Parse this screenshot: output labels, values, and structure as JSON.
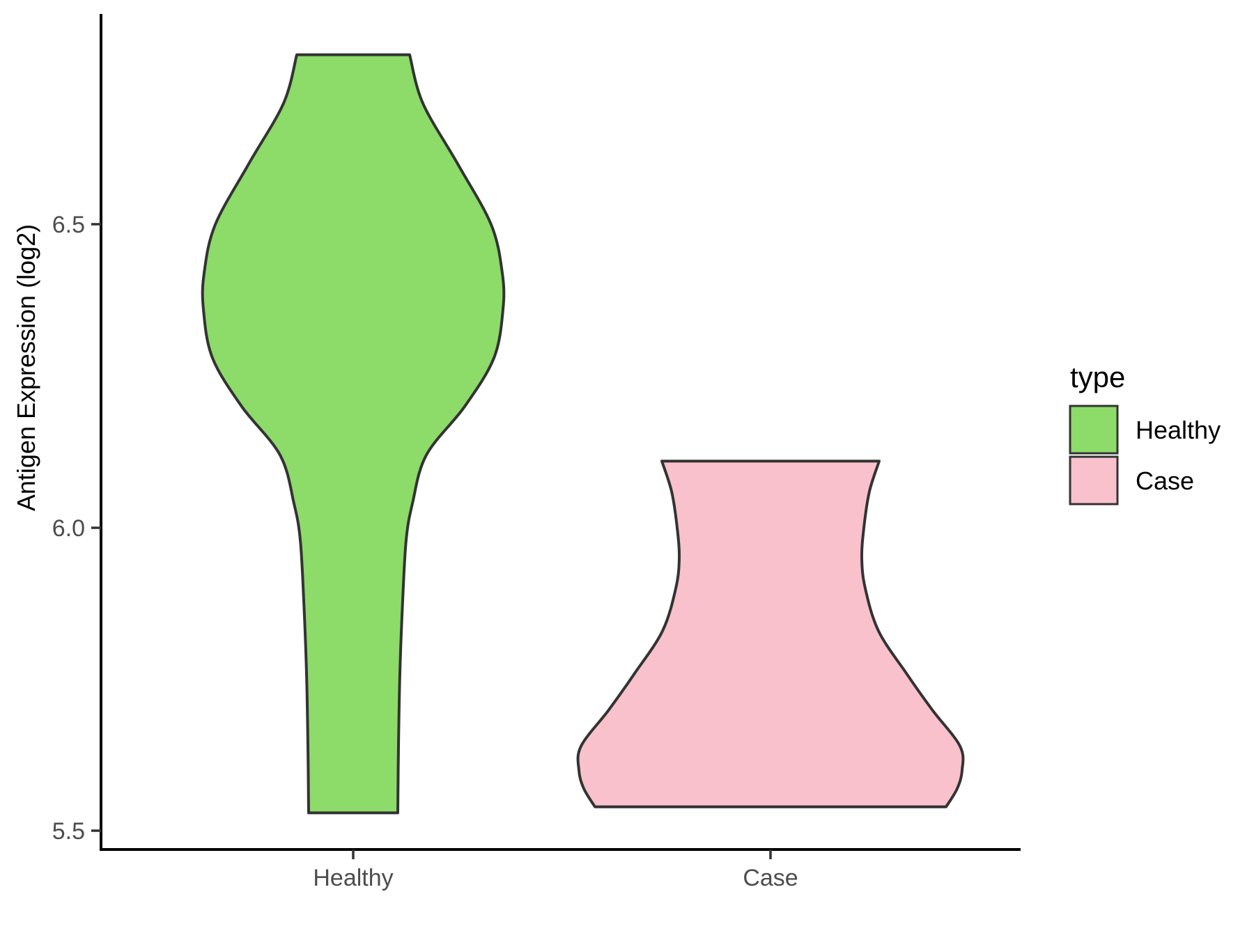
{
  "figure": {
    "background": "#ffffff",
    "axis_line_color": "#000000",
    "tick_mark_color": "#333333",
    "tick_label_color": "#4d4d4d",
    "violin_outline_color": "#333333"
  },
  "chart_data": {
    "type": "violin",
    "title": "",
    "xlabel": "",
    "ylabel": "Antigen Expression (log2)",
    "categories": [
      "Healthy",
      "Case"
    ],
    "y_ticks": [
      "5.5",
      "6.0",
      "6.5"
    ],
    "y_tick_values": [
      5.5,
      6.0,
      6.5
    ],
    "ylim": [
      5.47,
      6.85
    ],
    "grid": false,
    "theme": "classic (no gridlines, black axis lines)",
    "legend": {
      "title": "type",
      "position": "right",
      "entries": [
        {
          "label": "Healthy",
          "color": "#8ddb69"
        },
        {
          "label": "Case",
          "color": "#f8c1cc"
        }
      ]
    },
    "series": [
      {
        "name": "Healthy",
        "color": "#8ddb69",
        "y_min": 5.53,
        "y_max": 6.78,
        "widest_at_y": 6.38,
        "profile_units": "[y_value, half_width_px_at_1800px_figure]",
        "profile": [
          [
            6.78,
            81
          ],
          [
            6.7,
            100
          ],
          [
            6.6,
            150
          ],
          [
            6.5,
            198
          ],
          [
            6.42,
            214
          ],
          [
            6.36,
            215
          ],
          [
            6.28,
            202
          ],
          [
            6.2,
            160
          ],
          [
            6.12,
            105
          ],
          [
            6.04,
            85
          ],
          [
            5.98,
            76
          ],
          [
            5.88,
            71
          ],
          [
            5.76,
            67
          ],
          [
            5.64,
            65
          ],
          [
            5.53,
            64
          ]
        ]
      },
      {
        "name": "Case",
        "color": "#f8c1cc",
        "y_min": 5.54,
        "y_max": 6.11,
        "widest_at_y": 5.62,
        "profile_units": "[y_value, half_width_px_at_1800px_figure]",
        "profile": [
          [
            6.11,
            156
          ],
          [
            6.06,
            142
          ],
          [
            6.0,
            134
          ],
          [
            5.95,
            131
          ],
          [
            5.9,
            136
          ],
          [
            5.83,
            155
          ],
          [
            5.76,
            195
          ],
          [
            5.7,
            232
          ],
          [
            5.64,
            272
          ],
          [
            5.6,
            275
          ],
          [
            5.57,
            268
          ],
          [
            5.54,
            252
          ]
        ]
      }
    ]
  }
}
